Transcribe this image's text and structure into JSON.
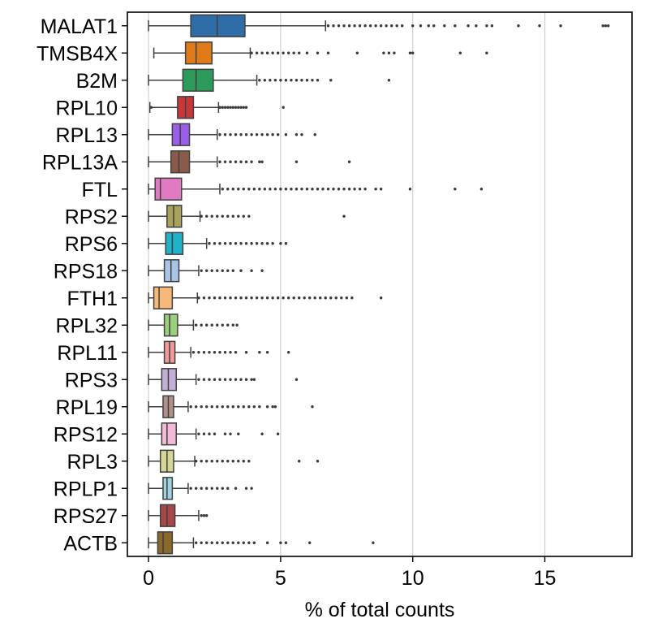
{
  "chart_data": {
    "type": "box",
    "orientation": "horizontal",
    "title": "",
    "xlabel": "% of total counts",
    "ylabel": "",
    "xlim": [
      -0.8,
      18.3
    ],
    "xticks": [
      0,
      5,
      10,
      15
    ],
    "grid": "x",
    "legend": "none",
    "series": [
      {
        "name": "MALAT1",
        "color": "#2f6da8",
        "whisker_low": 0.0,
        "q1": 1.6,
        "median": 2.6,
        "q3": 3.65,
        "whisker_high": 6.7,
        "outliers": [
          6.8,
          7.0,
          7.2,
          7.4,
          7.6,
          7.8,
          8.0,
          8.2,
          8.4,
          8.6,
          8.8,
          9.0,
          9.2,
          9.4,
          9.6,
          10.0,
          10.3,
          10.6,
          10.8,
          11.2,
          11.6,
          12.1,
          12.4,
          12.8,
          13.0,
          14.0,
          14.8,
          15.6,
          17.2,
          17.3,
          17.4
        ]
      },
      {
        "name": "TMSB4X",
        "color": "#e07b1a",
        "whisker_low": 0.2,
        "q1": 1.4,
        "median": 1.8,
        "q3": 2.4,
        "whisker_high": 3.85,
        "outliers": [
          3.9,
          4.1,
          4.3,
          4.5,
          4.7,
          4.9,
          5.1,
          5.3,
          5.5,
          5.7,
          6.0,
          6.4,
          6.8,
          7.9,
          8.9,
          9.1,
          9.3,
          9.9,
          10.0,
          11.8,
          12.8
        ]
      },
      {
        "name": "B2M",
        "color": "#2c9a5a",
        "whisker_low": 0.0,
        "q1": 1.3,
        "median": 1.8,
        "q3": 2.45,
        "whisker_high": 4.1,
        "outliers": [
          4.2,
          4.4,
          4.6,
          4.8,
          5.0,
          5.2,
          5.4,
          5.6,
          5.8,
          6.0,
          6.2,
          6.4,
          6.9,
          9.1
        ]
      },
      {
        "name": "RPL10",
        "color": "#c8373a",
        "whisker_low": 0.05,
        "q1": 1.1,
        "median": 1.4,
        "q3": 1.7,
        "whisker_high": 2.65,
        "outliers": [
          0.1,
          2.7,
          2.8,
          2.9,
          3.0,
          3.1,
          3.2,
          3.3,
          3.4,
          3.5,
          3.6,
          3.7,
          5.1
        ]
      },
      {
        "name": "RPL13",
        "color": "#9b5ee8",
        "whisker_low": 0.0,
        "q1": 0.9,
        "median": 1.2,
        "q3": 1.55,
        "whisker_high": 2.6,
        "outliers": [
          2.7,
          2.9,
          3.1,
          3.3,
          3.5,
          3.7,
          3.9,
          4.1,
          4.3,
          4.5,
          4.7,
          4.9,
          5.2,
          5.6,
          5.8,
          6.3
        ]
      },
      {
        "name": "RPL13A",
        "color": "#8a5a4a",
        "whisker_low": 0.0,
        "q1": 0.85,
        "median": 1.15,
        "q3": 1.55,
        "whisker_high": 2.6,
        "outliers": [
          2.7,
          2.9,
          3.1,
          3.3,
          3.5,
          3.7,
          3.9,
          4.2,
          4.3,
          5.6,
          7.6
        ]
      },
      {
        "name": "FTL",
        "color": "#e07ac3",
        "whisker_low": 0.0,
        "q1": 0.25,
        "median": 0.45,
        "q3": 1.25,
        "whisker_high": 2.7,
        "outliers": [
          2.8,
          3.0,
          3.2,
          3.4,
          3.6,
          3.8,
          4.0,
          4.2,
          4.4,
          4.6,
          4.8,
          5.0,
          5.2,
          5.4,
          5.6,
          5.8,
          6.0,
          6.2,
          6.4,
          6.6,
          6.8,
          7.0,
          7.2,
          7.4,
          7.6,
          7.8,
          8.0,
          8.2,
          8.6,
          8.8,
          9.9,
          11.6,
          12.6
        ]
      },
      {
        "name": "RPS2",
        "color": "#a8a25a",
        "whisker_low": 0.0,
        "q1": 0.7,
        "median": 0.95,
        "q3": 1.25,
        "whisker_high": 1.95,
        "outliers": [
          2.0,
          2.2,
          2.4,
          2.6,
          2.8,
          3.0,
          3.2,
          3.4,
          3.6,
          3.8,
          7.4
        ]
      },
      {
        "name": "RPS6",
        "color": "#1fb3c9",
        "whisker_low": 0.0,
        "q1": 0.65,
        "median": 0.9,
        "q3": 1.3,
        "whisker_high": 2.2,
        "outliers": [
          2.3,
          2.5,
          2.7,
          2.9,
          3.1,
          3.3,
          3.5,
          3.7,
          3.9,
          4.1,
          4.3,
          4.5,
          4.7,
          5.0,
          5.2
        ]
      },
      {
        "name": "RPS18",
        "color": "#a8c4e6",
        "whisker_low": 0.0,
        "q1": 0.6,
        "median": 0.85,
        "q3": 1.15,
        "whisker_high": 1.9,
        "outliers": [
          2.0,
          2.2,
          2.4,
          2.6,
          2.8,
          3.0,
          3.2,
          3.5,
          3.9,
          4.3
        ]
      },
      {
        "name": "FTH1",
        "color": "#f7b97a",
        "whisker_low": 0.0,
        "q1": 0.2,
        "median": 0.4,
        "q3": 0.9,
        "whisker_high": 1.85,
        "outliers": [
          1.9,
          2.1,
          2.3,
          2.5,
          2.7,
          2.9,
          3.1,
          3.3,
          3.5,
          3.7,
          3.9,
          4.1,
          4.3,
          4.5,
          4.7,
          4.9,
          5.1,
          5.3,
          5.5,
          5.7,
          5.9,
          6.1,
          6.3,
          6.5,
          6.7,
          6.9,
          7.1,
          7.3,
          7.5,
          7.7,
          8.8
        ]
      },
      {
        "name": "RPL32",
        "color": "#98d17a",
        "whisker_low": 0.0,
        "q1": 0.6,
        "median": 0.8,
        "q3": 1.1,
        "whisker_high": 1.7,
        "outliers": [
          1.8,
          2.0,
          2.2,
          2.4,
          2.6,
          2.8,
          3.0,
          3.2,
          3.35
        ]
      },
      {
        "name": "RPL11",
        "color": "#f2999a",
        "whisker_low": 0.0,
        "q1": 0.6,
        "median": 0.8,
        "q3": 1.0,
        "whisker_high": 1.6,
        "outliers": [
          1.7,
          1.9,
          2.1,
          2.3,
          2.5,
          2.7,
          2.9,
          3.1,
          3.3,
          3.7,
          4.2,
          4.5,
          5.3
        ]
      },
      {
        "name": "RPS3",
        "color": "#c3afd6",
        "whisker_low": 0.0,
        "q1": 0.5,
        "median": 0.75,
        "q3": 1.05,
        "whisker_high": 1.8,
        "outliers": [
          1.9,
          2.1,
          2.3,
          2.5,
          2.7,
          2.9,
          3.1,
          3.3,
          3.5,
          3.7,
          3.9,
          4.0,
          5.6
        ]
      },
      {
        "name": "RPL19",
        "color": "#b09088",
        "whisker_low": 0.0,
        "q1": 0.55,
        "median": 0.75,
        "q3": 0.95,
        "whisker_high": 1.5,
        "outliers": [
          1.6,
          1.8,
          2.0,
          2.2,
          2.4,
          2.6,
          2.8,
          3.0,
          3.2,
          3.4,
          3.6,
          3.8,
          4.0,
          4.2,
          4.5,
          4.7,
          4.8,
          6.2
        ]
      },
      {
        "name": "RPS12",
        "color": "#f2bad6",
        "whisker_low": 0.0,
        "q1": 0.5,
        "median": 0.7,
        "q3": 1.05,
        "whisker_high": 1.8,
        "outliers": [
          1.9,
          2.1,
          2.3,
          2.5,
          2.9,
          3.1,
          3.4,
          4.3,
          4.9
        ]
      },
      {
        "name": "RPL3",
        "color": "#d6d598",
        "whisker_low": 0.0,
        "q1": 0.45,
        "median": 0.7,
        "q3": 0.95,
        "whisker_high": 1.75,
        "outliers": [
          1.8,
          2.0,
          2.2,
          2.4,
          2.6,
          2.8,
          3.0,
          3.2,
          3.4,
          3.6,
          3.8,
          5.7,
          6.4
        ]
      },
      {
        "name": "RPLP1",
        "color": "#a3d3e2",
        "whisker_low": 0.0,
        "q1": 0.55,
        "median": 0.7,
        "q3": 0.9,
        "whisker_high": 1.5,
        "outliers": [
          1.6,
          1.8,
          2.0,
          2.2,
          2.4,
          2.6,
          2.8,
          3.0,
          3.3,
          3.7,
          3.9
        ]
      },
      {
        "name": "RPS27",
        "color": "#a8474a",
        "whisker_low": 0.0,
        "q1": 0.45,
        "median": 0.7,
        "q3": 1.0,
        "whisker_high": 1.9,
        "outliers": [
          2.0,
          2.1,
          2.2
        ]
      },
      {
        "name": "ACTB",
        "color": "#8a6a2a",
        "whisker_low": 0.0,
        "q1": 0.35,
        "median": 0.55,
        "q3": 0.9,
        "whisker_high": 1.7,
        "outliers": [
          1.8,
          2.0,
          2.2,
          2.4,
          2.6,
          2.8,
          3.0,
          3.2,
          3.4,
          3.6,
          3.8,
          4.0,
          4.5,
          5.0,
          5.2,
          6.1,
          8.5
        ]
      }
    ]
  }
}
